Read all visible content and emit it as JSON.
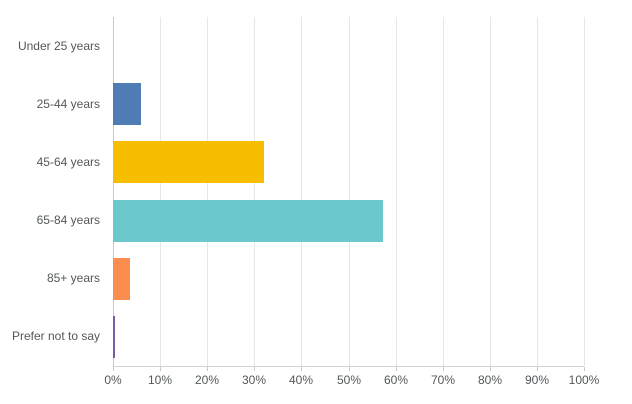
{
  "colors": {
    "background": "#ffffff",
    "gridline": "#e7e7e7",
    "axis_line": "#c9c9c9",
    "plot_border": "#d4d4d4",
    "label_text": "#54585a"
  },
  "chart_data": {
    "type": "bar",
    "orientation": "horizontal",
    "categories": [
      "Under 25 years",
      "25-44 years",
      "45-64 years",
      "65-84 years",
      "85+ years",
      "Prefer not to say"
    ],
    "values": [
      0,
      5.9,
      32.1,
      57.4,
      3.5,
      0.5
    ],
    "value_unit": "%",
    "bar_colors": [
      null,
      "#507CB5",
      "#F7BE00",
      "#6BC8CD",
      "#FB8E4E",
      "#7B5AA3"
    ],
    "xlim": [
      0,
      100
    ],
    "x_tick_step": 10,
    "x_tick_labels": [
      "0%",
      "10%",
      "20%",
      "30%",
      "40%",
      "50%",
      "60%",
      "70%",
      "80%",
      "90%",
      "100%"
    ],
    "grid": "vertical",
    "legend": "none",
    "title": ""
  }
}
